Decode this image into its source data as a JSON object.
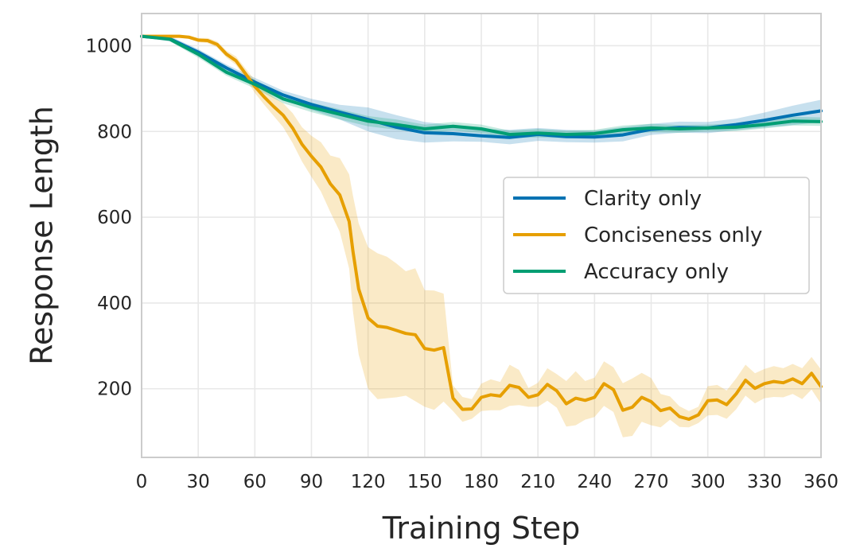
{
  "chart_data": {
    "type": "line",
    "title": "",
    "xlabel": "Training Step",
    "ylabel": "Response Length",
    "xlim": [
      0,
      360
    ],
    "ylim": [
      40,
      1075
    ],
    "xticks": [
      0,
      30,
      60,
      90,
      120,
      150,
      180,
      210,
      240,
      270,
      300,
      330,
      360
    ],
    "xtick_labels": [
      "0",
      "30",
      "60",
      "90",
      "120",
      "150",
      "180",
      "210",
      "240",
      "270",
      "300",
      "330",
      "360"
    ],
    "yticks": [
      200,
      400,
      600,
      800,
      1000
    ],
    "ytick_labels": [
      "200",
      "400",
      "600",
      "800",
      "1000"
    ],
    "grid": true,
    "legend_position": "center-right",
    "series": [
      {
        "name": "Clarity only",
        "color": "#0072B2",
        "x": [
          0,
          15,
          30,
          45,
          60,
          75,
          90,
          105,
          120,
          135,
          150,
          165,
          180,
          195,
          210,
          225,
          240,
          255,
          270,
          285,
          300,
          315,
          330,
          345,
          360
        ],
        "values": [
          1022,
          1016,
          985,
          948,
          915,
          885,
          863,
          845,
          828,
          810,
          797,
          795,
          790,
          786,
          793,
          788,
          787,
          792,
          805,
          809,
          808,
          816,
          826,
          838,
          848
        ],
        "band_lower": [
          1020,
          1010,
          978,
          940,
          905,
          875,
          850,
          828,
          800,
          782,
          774,
          777,
          776,
          770,
          778,
          775,
          774,
          777,
          792,
          797,
          796,
          803,
          809,
          815,
          822
        ],
        "band_upper": [
          1024,
          1022,
          992,
          956,
          925,
          895,
          876,
          862,
          856,
          838,
          822,
          815,
          806,
          804,
          808,
          804,
          802,
          810,
          818,
          823,
          822,
          830,
          844,
          860,
          874
        ]
      },
      {
        "name": "Conciseness only",
        "color": "#E69F00",
        "x": [
          0,
          5,
          10,
          15,
          20,
          25,
          30,
          35,
          40,
          45,
          50,
          55,
          60,
          65,
          70,
          75,
          80,
          85,
          90,
          95,
          100,
          105,
          110,
          112,
          115,
          120,
          125,
          130,
          135,
          140,
          145,
          150,
          155,
          160,
          165,
          170,
          175,
          180,
          185,
          190,
          195,
          200,
          205,
          210,
          215,
          220,
          225,
          230,
          235,
          240,
          245,
          250,
          255,
          260,
          265,
          270,
          275,
          280,
          285,
          290,
          295,
          300,
          305,
          310,
          315,
          320,
          325,
          330,
          335,
          340,
          345,
          350,
          355,
          360
        ],
        "values": [
          1022,
          1022,
          1022,
          1022,
          1022,
          1020,
          1013,
          1012,
          1003,
          980,
          965,
          935,
          905,
          880,
          858,
          838,
          808,
          770,
          742,
          717,
          678,
          652,
          590,
          520,
          433,
          365,
          346,
          343,
          336,
          329,
          326,
          294,
          290,
          296,
          178,
          152,
          153,
          180,
          186,
          183,
          208,
          203,
          180,
          186,
          210,
          195,
          165,
          178,
          173,
          180,
          212,
          198,
          150,
          157,
          180,
          170,
          149,
          155,
          135,
          129,
          139,
          172,
          174,
          163,
          188,
          220,
          201,
          212,
          217,
          214,
          223,
          212,
          236,
          205
        ],
        "band_lower": [
          1022,
          1022,
          1022,
          1022,
          1020,
          1016,
          1008,
          1006,
          996,
          972,
          955,
          923,
          890,
          862,
          836,
          810,
          773,
          730,
          694,
          660,
          612,
          566,
          480,
          380,
          280,
          200,
          176,
          178,
          180,
          184,
          171,
          158,
          151,
          170,
          148,
          123,
          130,
          148,
          150,
          150,
          160,
          162,
          158,
          158,
          172,
          156,
          112,
          115,
          128,
          134,
          160,
          146,
          87,
          90,
          123,
          115,
          110,
          128,
          111,
          110,
          120,
          138,
          139,
          130,
          152,
          184,
          166,
          178,
          181,
          180,
          188,
          176,
          198,
          165
        ],
        "band_upper": [
          1022,
          1022,
          1022,
          1022,
          1023,
          1023,
          1018,
          1018,
          1010,
          988,
          975,
          947,
          920,
          898,
          880,
          866,
          843,
          810,
          790,
          775,
          744,
          738,
          700,
          650,
          586,
          530,
          516,
          508,
          492,
          474,
          481,
          430,
          429,
          422,
          208,
          181,
          176,
          212,
          222,
          216,
          256,
          244,
          202,
          214,
          248,
          234,
          218,
          241,
          218,
          226,
          264,
          250,
          213,
          224,
          237,
          225,
          188,
          182,
          159,
          148,
          158,
          206,
          209,
          196,
          224,
          256,
          236,
          246,
          253,
          248,
          258,
          248,
          274,
          245
        ]
      },
      {
        "name": "Accuracy only",
        "color": "#009E73",
        "x": [
          0,
          15,
          30,
          45,
          60,
          75,
          90,
          105,
          120,
          135,
          150,
          165,
          180,
          195,
          210,
          225,
          240,
          255,
          270,
          285,
          300,
          315,
          330,
          345,
          360
        ],
        "values": [
          1022,
          1015,
          980,
          938,
          910,
          876,
          856,
          840,
          824,
          816,
          806,
          812,
          806,
          793,
          796,
          793,
          795,
          804,
          808,
          806,
          808,
          810,
          816,
          824,
          823
        ],
        "band_lower": [
          1020,
          1010,
          972,
          930,
          900,
          866,
          845,
          828,
          812,
          804,
          796,
          802,
          796,
          784,
          786,
          784,
          786,
          794,
          798,
          797,
          800,
          801,
          807,
          814,
          813
        ],
        "band_upper": [
          1024,
          1020,
          988,
          946,
          920,
          886,
          867,
          852,
          836,
          828,
          816,
          822,
          816,
          802,
          806,
          802,
          804,
          814,
          818,
          815,
          816,
          819,
          825,
          834,
          833
        ]
      }
    ]
  }
}
